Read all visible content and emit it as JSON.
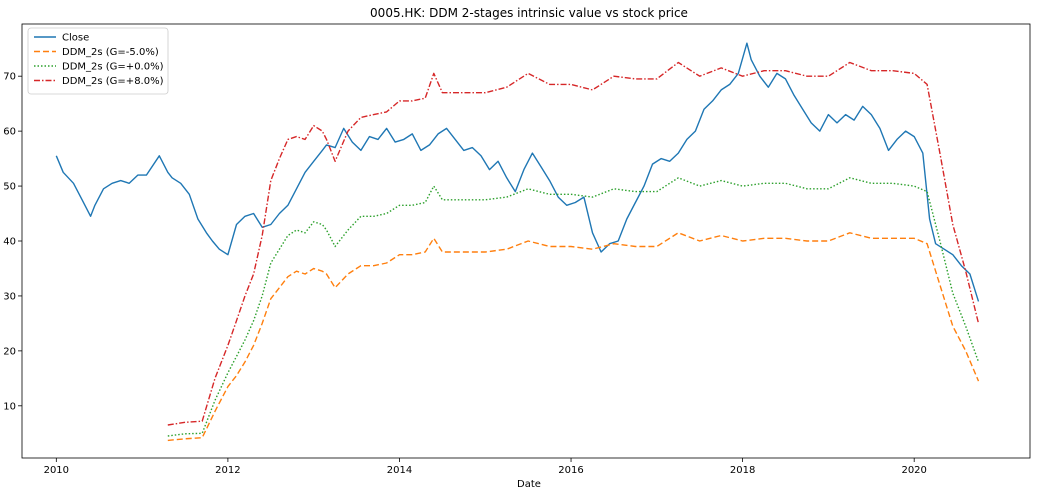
{
  "chart_data": {
    "type": "line",
    "title": "0005.HK: DDM 2-stages intrinsic value vs stock price",
    "xlabel": "Date",
    "ylabel": "",
    "xlim": [
      2009.6,
      2021.35
    ],
    "ylim": [
      0.5,
      79.5
    ],
    "x_ticks": [
      2010,
      2012,
      2014,
      2016,
      2018,
      2020
    ],
    "y_ticks": [
      10,
      20,
      30,
      40,
      50,
      60,
      70
    ],
    "grid": false,
    "legend_position": "top-left",
    "series": [
      {
        "name": "Close",
        "color": "#1f77b4",
        "style": "solid",
        "x": [
          2010.0,
          2010.08,
          2010.2,
          2010.3,
          2010.4,
          2010.45,
          2010.55,
          2010.65,
          2010.75,
          2010.85,
          2010.95,
          2011.05,
          2011.2,
          2011.3,
          2011.35,
          2011.45,
          2011.55,
          2011.65,
          2011.75,
          2011.82,
          2011.9,
          2012.0,
          2012.1,
          2012.2,
          2012.3,
          2012.4,
          2012.5,
          2012.6,
          2012.7,
          2012.8,
          2012.9,
          2013.0,
          2013.1,
          2013.15,
          2013.25,
          2013.35,
          2013.45,
          2013.55,
          2013.65,
          2013.75,
          2013.85,
          2013.95,
          2014.05,
          2014.15,
          2014.25,
          2014.35,
          2014.45,
          2014.55,
          2014.65,
          2014.75,
          2014.85,
          2014.95,
          2015.05,
          2015.15,
          2015.25,
          2015.35,
          2015.45,
          2015.55,
          2015.65,
          2015.75,
          2015.85,
          2015.95,
          2016.05,
          2016.15,
          2016.25,
          2016.35,
          2016.45,
          2016.55,
          2016.65,
          2016.75,
          2016.85,
          2016.95,
          2017.05,
          2017.15,
          2017.25,
          2017.35,
          2017.45,
          2017.55,
          2017.65,
          2017.75,
          2017.85,
          2017.95,
          2018.05,
          2018.1,
          2018.2,
          2018.3,
          2018.4,
          2018.5,
          2018.6,
          2018.7,
          2018.8,
          2018.9,
          2019.0,
          2019.1,
          2019.2,
          2019.3,
          2019.4,
          2019.5,
          2019.6,
          2019.7,
          2019.8,
          2019.9,
          2020.0,
          2020.1,
          2020.18,
          2020.25,
          2020.35,
          2020.45,
          2020.55,
          2020.65,
          2020.75
        ],
        "y": [
          55.5,
          52.5,
          50.5,
          47.5,
          44.5,
          46.5,
          49.5,
          50.5,
          51.0,
          50.5,
          52.0,
          52.0,
          55.5,
          52.5,
          51.5,
          50.5,
          48.5,
          44.0,
          41.5,
          40.0,
          38.5,
          37.5,
          43.0,
          44.5,
          45.0,
          42.5,
          43.0,
          45.0,
          46.5,
          49.5,
          52.5,
          54.5,
          56.5,
          57.5,
          57.0,
          60.5,
          58.0,
          56.5,
          59.0,
          58.5,
          60.5,
          58.0,
          58.5,
          59.5,
          56.5,
          57.5,
          59.5,
          60.5,
          58.5,
          56.5,
          57.0,
          55.5,
          53.0,
          54.5,
          51.5,
          49.0,
          53.0,
          56.0,
          53.5,
          51.0,
          48.0,
          46.5,
          47.0,
          48.0,
          41.5,
          38.0,
          39.5,
          40.0,
          44.0,
          47.0,
          50.0,
          54.0,
          55.0,
          54.5,
          56.0,
          58.5,
          60.0,
          64.0,
          65.5,
          67.5,
          68.5,
          70.5,
          76.0,
          73.0,
          70.0,
          68.0,
          70.5,
          69.5,
          66.5,
          64.0,
          61.5,
          60.0,
          63.0,
          61.5,
          63.0,
          62.0,
          64.5,
          63.0,
          60.5,
          56.5,
          58.5,
          60.0,
          59.0,
          56.0,
          44.0,
          39.5,
          38.5,
          37.5,
          35.5,
          34.0,
          29.0
        ]
      },
      {
        "name": "DDM_2s (G=-5.0%)",
        "color": "#ff7f0e",
        "style": "dashed",
        "x": [
          2011.3,
          2011.5,
          2011.7,
          2011.85,
          2012.0,
          2012.1,
          2012.2,
          2012.3,
          2012.4,
          2012.5,
          2012.6,
          2012.7,
          2012.8,
          2012.9,
          2013.0,
          2013.1,
          2013.15,
          2013.25,
          2013.4,
          2013.55,
          2013.7,
          2013.85,
          2014.0,
          2014.15,
          2014.3,
          2014.4,
          2014.5,
          2014.75,
          2015.0,
          2015.25,
          2015.5,
          2015.75,
          2016.0,
          2016.25,
          2016.5,
          2016.75,
          2017.0,
          2017.25,
          2017.5,
          2017.75,
          2018.0,
          2018.25,
          2018.5,
          2018.75,
          2019.0,
          2019.25,
          2019.5,
          2019.75,
          2020.0,
          2020.15,
          2020.3,
          2020.45,
          2020.6,
          2020.75
        ],
        "y": [
          3.7,
          4.0,
          4.2,
          9.0,
          13.5,
          15.5,
          18.0,
          21.0,
          25.0,
          29.5,
          31.5,
          33.5,
          34.5,
          34.0,
          35.0,
          34.5,
          34.0,
          31.5,
          34.0,
          35.5,
          35.5,
          36.0,
          37.5,
          37.5,
          38.0,
          40.5,
          38.0,
          38.0,
          38.0,
          38.5,
          40.0,
          39.0,
          39.0,
          38.5,
          39.5,
          39.0,
          39.0,
          41.5,
          40.0,
          41.0,
          40.0,
          40.5,
          40.5,
          40.0,
          40.0,
          41.5,
          40.5,
          40.5,
          40.5,
          39.5,
          32.0,
          24.5,
          20.0,
          14.5
        ]
      },
      {
        "name": "DDM_2s (G=+0.0%)",
        "color": "#2ca02c",
        "style": "dotted",
        "x": [
          2011.3,
          2011.5,
          2011.7,
          2011.85,
          2012.0,
          2012.1,
          2012.2,
          2012.3,
          2012.4,
          2012.5,
          2012.6,
          2012.7,
          2012.8,
          2012.9,
          2013.0,
          2013.1,
          2013.15,
          2013.25,
          2013.4,
          2013.55,
          2013.7,
          2013.85,
          2014.0,
          2014.15,
          2014.3,
          2014.4,
          2014.5,
          2014.75,
          2015.0,
          2015.25,
          2015.5,
          2015.75,
          2016.0,
          2016.25,
          2016.5,
          2016.75,
          2017.0,
          2017.25,
          2017.5,
          2017.75,
          2018.0,
          2018.25,
          2018.5,
          2018.75,
          2019.0,
          2019.25,
          2019.5,
          2019.75,
          2020.0,
          2020.15,
          2020.3,
          2020.45,
          2020.6,
          2020.75
        ],
        "y": [
          4.5,
          4.9,
          5.0,
          11.0,
          16.0,
          19.0,
          22.0,
          25.5,
          30.0,
          36.0,
          38.5,
          41.0,
          42.0,
          41.5,
          43.5,
          43.0,
          42.0,
          39.0,
          42.0,
          44.5,
          44.5,
          45.0,
          46.5,
          46.5,
          47.0,
          50.0,
          47.5,
          47.5,
          47.5,
          48.0,
          49.5,
          48.5,
          48.5,
          48.0,
          49.5,
          49.0,
          49.0,
          51.5,
          50.0,
          51.0,
          50.0,
          50.5,
          50.5,
          49.5,
          49.5,
          51.5,
          50.5,
          50.5,
          50.0,
          49.0,
          40.0,
          30.5,
          24.5,
          18.0
        ]
      },
      {
        "name": "DDM_2s (G=+8.0%)",
        "color": "#d62728",
        "style": "dashdot",
        "x": [
          2011.3,
          2011.5,
          2011.7,
          2011.85,
          2012.0,
          2012.1,
          2012.2,
          2012.3,
          2012.4,
          2012.5,
          2012.6,
          2012.7,
          2012.8,
          2012.9,
          2013.0,
          2013.1,
          2013.15,
          2013.25,
          2013.4,
          2013.55,
          2013.7,
          2013.85,
          2014.0,
          2014.15,
          2014.3,
          2014.4,
          2014.5,
          2014.75,
          2015.0,
          2015.25,
          2015.5,
          2015.75,
          2016.0,
          2016.25,
          2016.5,
          2016.75,
          2017.0,
          2017.25,
          2017.5,
          2017.75,
          2018.0,
          2018.25,
          2018.5,
          2018.75,
          2019.0,
          2019.25,
          2019.5,
          2019.75,
          2020.0,
          2020.15,
          2020.3,
          2020.45,
          2020.6,
          2020.75
        ],
        "y": [
          6.5,
          7.0,
          7.2,
          15.0,
          21.0,
          25.5,
          30.0,
          34.0,
          41.0,
          51.0,
          55.0,
          58.5,
          59.0,
          58.5,
          61.0,
          60.0,
          58.5,
          54.5,
          60.0,
          62.5,
          63.0,
          63.5,
          65.5,
          65.5,
          66.0,
          70.5,
          67.0,
          67.0,
          67.0,
          68.0,
          70.5,
          68.5,
          68.5,
          67.5,
          70.0,
          69.5,
          69.5,
          72.5,
          70.0,
          71.5,
          70.0,
          71.0,
          71.0,
          70.0,
          70.0,
          72.5,
          71.0,
          71.0,
          70.5,
          68.5,
          56.0,
          43.0,
          34.5,
          25.0
        ]
      }
    ]
  }
}
